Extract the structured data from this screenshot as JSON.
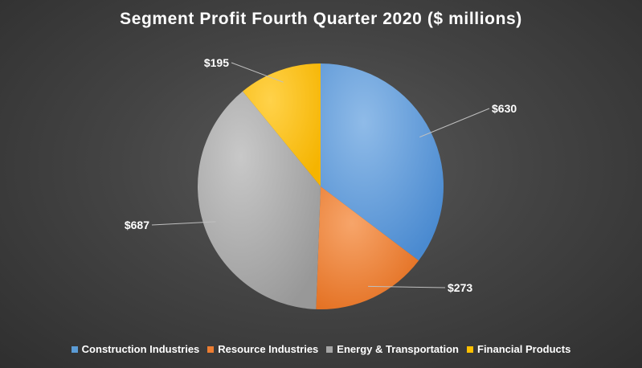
{
  "chart_data": {
    "type": "pie",
    "title": "Segment Profit Fourth Quarter 2020 ($ millions)",
    "categories": [
      "Construction Industries",
      "Resource Industries",
      "Energy & Transportation",
      "Financial Products"
    ],
    "values": [
      630,
      273,
      687,
      195
    ],
    "data_labels": [
      "$630",
      "$273",
      "$687",
      "$195"
    ],
    "colors": [
      "#5b9bd5",
      "#ed7d31",
      "#a5a5a5",
      "#ffc000"
    ],
    "start_angle_deg": 0,
    "direction": "clockwise",
    "legend_position": "bottom"
  }
}
